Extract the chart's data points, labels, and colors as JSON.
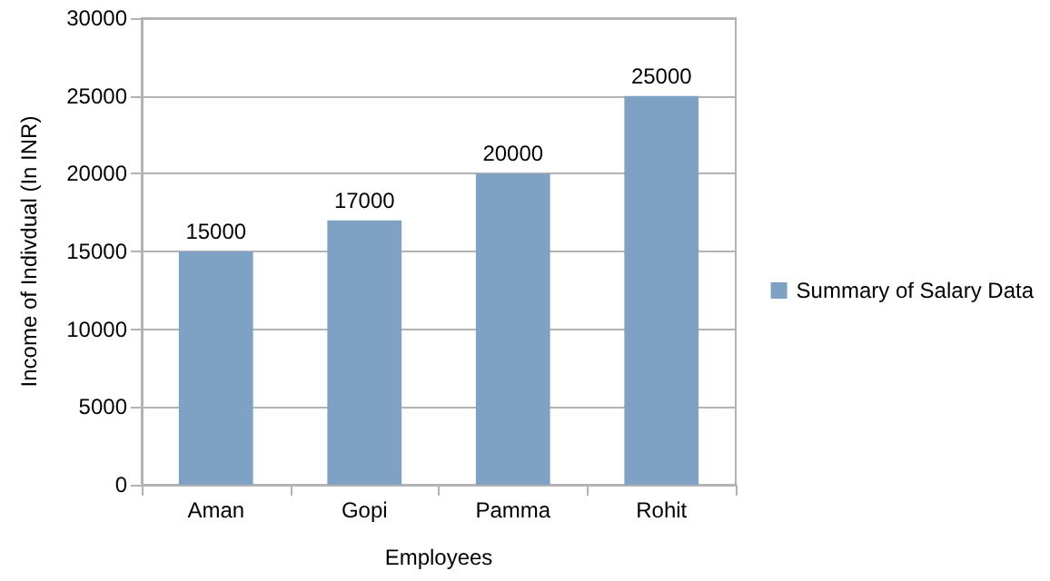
{
  "chart_data": {
    "type": "bar",
    "xlabel": "Employees",
    "ylabel": "Income of Indivdual (In INR)",
    "categories": [
      "Aman",
      "Gopi",
      "Pamma",
      "Rohit"
    ],
    "series": [
      {
        "name": "Summary of Salary Data",
        "color": "#7ea1c4",
        "values": [
          15000,
          17000,
          20000,
          25000
        ]
      }
    ],
    "ylim": [
      0,
      30000
    ],
    "yticks": [
      0,
      5000,
      10000,
      15000,
      20000,
      25000,
      30000
    ],
    "grid": "y",
    "legend": "right",
    "data_labels": true
  }
}
